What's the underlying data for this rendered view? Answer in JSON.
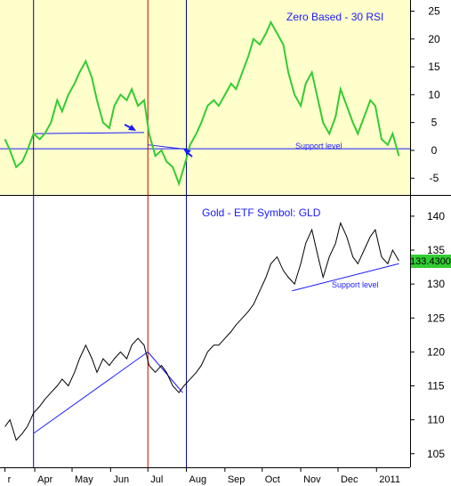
{
  "chart_data": [
    {
      "type": "line",
      "panel": "rsi",
      "title": "Zero Based - 30 RSI",
      "background": "#ffffcc",
      "line_color": "#33cc33",
      "ylim": [
        -8,
        27
      ],
      "yticks": [
        25,
        20,
        15,
        10,
        5,
        0,
        -5
      ],
      "annotations": [
        {
          "label": "Support level",
          "type": "hline",
          "y": 0.3
        }
      ],
      "series": [
        {
          "points": [
            [
              "2010-03-08",
              2
            ],
            [
              "2010-03-12",
              0
            ],
            [
              "2010-03-17",
              -3
            ],
            [
              "2010-03-22",
              -2
            ],
            [
              "2010-03-26",
              0
            ],
            [
              "2010-03-31",
              3
            ],
            [
              "2010-04-05",
              2
            ],
            [
              "2010-04-09",
              3
            ],
            [
              "2010-04-14",
              5
            ],
            [
              "2010-04-19",
              9
            ],
            [
              "2010-04-23",
              7
            ],
            [
              "2010-04-28",
              10
            ],
            [
              "2010-05-03",
              12
            ],
            [
              "2010-05-07",
              14
            ],
            [
              "2010-05-12",
              16
            ],
            [
              "2010-05-17",
              13
            ],
            [
              "2010-05-21",
              9
            ],
            [
              "2010-05-26",
              5
            ],
            [
              "2010-05-31",
              4
            ],
            [
              "2010-06-04",
              8
            ],
            [
              "2010-06-09",
              10
            ],
            [
              "2010-06-14",
              9
            ],
            [
              "2010-06-18",
              11
            ],
            [
              "2010-06-23",
              8
            ],
            [
              "2010-06-28",
              9
            ],
            [
              "2010-07-02",
              3
            ],
            [
              "2010-07-07",
              -1
            ],
            [
              "2010-07-12",
              0
            ],
            [
              "2010-07-16",
              -2
            ],
            [
              "2010-07-21",
              -3
            ],
            [
              "2010-07-26",
              -6
            ],
            [
              "2010-07-30",
              -3
            ],
            [
              "2010-08-04",
              1
            ],
            [
              "2010-08-09",
              3
            ],
            [
              "2010-08-13",
              5
            ],
            [
              "2010-08-18",
              8
            ],
            [
              "2010-08-23",
              9
            ],
            [
              "2010-08-27",
              8
            ],
            [
              "2010-09-01",
              10
            ],
            [
              "2010-09-06",
              12
            ],
            [
              "2010-09-10",
              11
            ],
            [
              "2010-09-15",
              14
            ],
            [
              "2010-09-20",
              17
            ],
            [
              "2010-09-24",
              20
            ],
            [
              "2010-09-29",
              19
            ],
            [
              "2010-10-04",
              21
            ],
            [
              "2010-10-08",
              23
            ],
            [
              "2010-10-13",
              21
            ],
            [
              "2010-10-18",
              19
            ],
            [
              "2010-10-22",
              14
            ],
            [
              "2010-10-27",
              10
            ],
            [
              "2010-11-01",
              8
            ],
            [
              "2010-11-05",
              12
            ],
            [
              "2010-11-10",
              14
            ],
            [
              "2010-11-15",
              9
            ],
            [
              "2010-11-19",
              5
            ],
            [
              "2010-11-24",
              3
            ],
            [
              "2010-11-29",
              6
            ],
            [
              "2010-12-03",
              11
            ],
            [
              "2010-12-08",
              8
            ],
            [
              "2010-12-13",
              5
            ],
            [
              "2010-12-17",
              3
            ],
            [
              "2010-12-22",
              6
            ],
            [
              "2010-12-27",
              9
            ],
            [
              "2010-12-31",
              8
            ],
            [
              "2011-01-05",
              2
            ],
            [
              "2011-01-10",
              1
            ],
            [
              "2011-01-14",
              3
            ],
            [
              "2011-01-19",
              -1
            ]
          ]
        }
      ]
    },
    {
      "type": "line",
      "panel": "price",
      "title": "Gold - ETF Symbol: GLD",
      "background": "#ffffff",
      "line_color": "#000000",
      "ylim": [
        103,
        143
      ],
      "yticks": [
        140,
        135,
        130,
        125,
        120,
        115,
        110,
        105
      ],
      "last_price": "133.4300",
      "last_price_color": "#33cc33",
      "annotations": [
        {
          "label": "Support level",
          "type": "trendline",
          "from": [
            "2010-10-25",
            129
          ],
          "to": [
            "2011-01-19",
            133
          ]
        }
      ],
      "series": [
        {
          "points": [
            [
              "2010-03-08",
              109
            ],
            [
              "2010-03-12",
              110
            ],
            [
              "2010-03-17",
              107
            ],
            [
              "2010-03-22",
              108
            ],
            [
              "2010-03-26",
              109
            ],
            [
              "2010-03-31",
              111
            ],
            [
              "2010-04-05",
              112
            ],
            [
              "2010-04-09",
              113
            ],
            [
              "2010-04-14",
              114
            ],
            [
              "2010-04-19",
              115
            ],
            [
              "2010-04-23",
              116
            ],
            [
              "2010-04-28",
              115
            ],
            [
              "2010-05-03",
              117
            ],
            [
              "2010-05-07",
              119
            ],
            [
              "2010-05-12",
              121
            ],
            [
              "2010-05-17",
              119
            ],
            [
              "2010-05-21",
              117
            ],
            [
              "2010-05-26",
              119
            ],
            [
              "2010-05-31",
              118
            ],
            [
              "2010-06-04",
              119
            ],
            [
              "2010-06-09",
              120
            ],
            [
              "2010-06-14",
              119
            ],
            [
              "2010-06-18",
              121
            ],
            [
              "2010-06-23",
              122
            ],
            [
              "2010-06-28",
              121
            ],
            [
              "2010-07-02",
              118
            ],
            [
              "2010-07-07",
              117
            ],
            [
              "2010-07-12",
              118
            ],
            [
              "2010-07-16",
              117
            ],
            [
              "2010-07-21",
              115
            ],
            [
              "2010-07-26",
              114
            ],
            [
              "2010-07-30",
              115
            ],
            [
              "2010-08-04",
              116
            ],
            [
              "2010-08-09",
              117
            ],
            [
              "2010-08-13",
              118
            ],
            [
              "2010-08-18",
              120
            ],
            [
              "2010-08-23",
              121
            ],
            [
              "2010-08-27",
              121
            ],
            [
              "2010-09-01",
              122
            ],
            [
              "2010-09-06",
              123
            ],
            [
              "2010-09-10",
              124
            ],
            [
              "2010-09-15",
              125
            ],
            [
              "2010-09-20",
              126
            ],
            [
              "2010-09-24",
              127
            ],
            [
              "2010-09-29",
              129
            ],
            [
              "2010-10-04",
              131
            ],
            [
              "2010-10-08",
              133
            ],
            [
              "2010-10-13",
              134
            ],
            [
              "2010-10-18",
              132
            ],
            [
              "2010-10-22",
              131
            ],
            [
              "2010-10-27",
              130
            ],
            [
              "2010-11-01",
              133
            ],
            [
              "2010-11-05",
              136
            ],
            [
              "2010-11-10",
              138
            ],
            [
              "2010-11-15",
              134
            ],
            [
              "2010-11-19",
              131
            ],
            [
              "2010-11-24",
              134
            ],
            [
              "2010-11-29",
              136
            ],
            [
              "2010-12-03",
              139
            ],
            [
              "2010-12-08",
              137
            ],
            [
              "2010-12-13",
              134
            ],
            [
              "2010-12-17",
              133
            ],
            [
              "2010-12-22",
              135
            ],
            [
              "2010-12-27",
              137
            ],
            [
              "2010-12-31",
              138
            ],
            [
              "2011-01-05",
              134
            ],
            [
              "2011-01-10",
              133
            ],
            [
              "2011-01-14",
              135
            ],
            [
              "2011-01-19",
              133.43
            ]
          ]
        }
      ]
    }
  ],
  "x_axis": {
    "ticks": [
      {
        "label": "r",
        "date": "2010-03-08"
      },
      {
        "label": "Apr",
        "date": "2010-04-01"
      },
      {
        "label": "May",
        "date": "2010-05-01"
      },
      {
        "label": "Jun",
        "date": "2010-06-01"
      },
      {
        "label": "Jul",
        "date": "2010-07-01"
      },
      {
        "label": "Aug",
        "date": "2010-08-01"
      },
      {
        "label": "Sep",
        "date": "2010-09-01"
      },
      {
        "label": "Oct",
        "date": "2010-10-01"
      },
      {
        "label": "Nov",
        "date": "2010-11-01"
      },
      {
        "label": "Dec",
        "date": "2010-12-01"
      },
      {
        "label": "2011",
        "date": "2011-01-01"
      }
    ]
  },
  "vertical_markers": [
    {
      "date": "2010-03-31",
      "color": "#000099"
    },
    {
      "date": "2010-07-01",
      "color": "#cc0000"
    },
    {
      "date": "2010-08-01",
      "color": "#000099"
    }
  ],
  "trendlines": [
    {
      "panel": "rsi",
      "from": [
        "2010-04-01",
        3
      ],
      "to": [
        "2010-06-28",
        3.2
      ],
      "color": "#1a1aff"
    },
    {
      "panel": "rsi",
      "from": [
        "2010-07-01",
        1
      ],
      "to": [
        "2010-08-01",
        0.2
      ],
      "color": "#1a1aff"
    },
    {
      "panel": "price",
      "from": [
        "2010-03-31",
        108
      ],
      "to": [
        "2010-07-01",
        120
      ],
      "color": "#1a1aff"
    },
    {
      "panel": "price",
      "from": [
        "2010-07-01",
        120
      ],
      "to": [
        "2010-07-29",
        114
      ],
      "color": "#1a1aff"
    }
  ]
}
